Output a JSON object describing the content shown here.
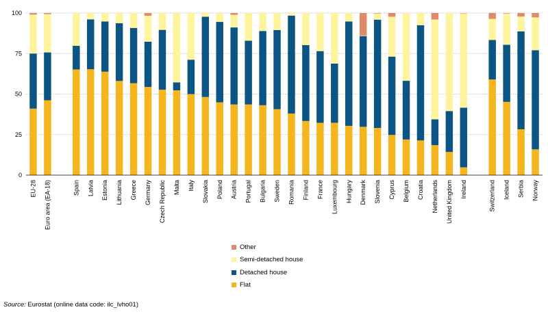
{
  "chart_data": {
    "type": "bar",
    "stacked": true,
    "categories": [
      "EU-28",
      "Euro area (EA-18)",
      "",
      "Spain",
      "Latvia",
      "Estonia",
      "Lithuania",
      "Greece",
      "Germany",
      "Czech Republic",
      "Malta",
      "Italy",
      "Slovakia",
      "Poland",
      "Austria",
      "Portugal",
      "Bulgaria",
      "Sweden",
      "Romania",
      "Finland",
      "France",
      "Luxembourg",
      "Hungary",
      "Denmark",
      "Slovenia",
      "Cyprus",
      "Belgium",
      "Croatia",
      "Netherlands",
      "United Kingdom",
      "Ireland",
      "",
      "Switzerland",
      "Iceland",
      "Serbia",
      "Norway"
    ],
    "series": [
      {
        "name": "Flat",
        "color": "#f4b51f",
        "values": [
          41.0,
          46.2,
          null,
          65.2,
          65.3,
          63.8,
          58.1,
          56.7,
          54.4,
          52.7,
          52.3,
          50.0,
          48.2,
          44.9,
          43.6,
          43.6,
          43.1,
          40.7,
          38.0,
          33.4,
          32.3,
          32.3,
          30.4,
          29.8,
          29.1,
          24.8,
          22.0,
          21.4,
          18.5,
          14.3,
          4.8,
          null,
          59.0,
          45.2,
          28.3,
          15.9
        ]
      },
      {
        "name": "Detached house",
        "color": "#0b5484",
        "values": [
          34.0,
          29.5,
          null,
          14.6,
          30.8,
          31.0,
          35.6,
          34.1,
          27.9,
          36.9,
          4.9,
          21.2,
          49.5,
          49.6,
          47.5,
          39.3,
          45.8,
          48.8,
          60.4,
          46.8,
          44.2,
          36.5,
          64.4,
          55.9,
          66.8,
          48.3,
          36.2,
          71.1,
          15.9,
          25.2,
          36.8,
          null,
          24.4,
          35.2,
          60.4,
          61.1
        ]
      },
      {
        "name": "Semi-detached house",
        "color": "#fff49e",
        "values": [
          24.0,
          23.6,
          null,
          20.2,
          3.9,
          5.2,
          6.3,
          9.2,
          16.0,
          10.4,
          42.8,
          28.8,
          2.3,
          5.5,
          7.8,
          17.1,
          11.1,
          10.5,
          1.6,
          19.8,
          23.5,
          31.2,
          5.2,
          0.2,
          3.8,
          24.6,
          41.8,
          7.5,
          61.6,
          60.5,
          58.2,
          null,
          13.0,
          19.3,
          9.1,
          20.3
        ]
      },
      {
        "name": "Other",
        "color": "#df8a69",
        "values": [
          1.0,
          0.7,
          null,
          0.0,
          0.0,
          0.0,
          0.0,
          0.0,
          1.7,
          0.0,
          0.0,
          0.0,
          0.0,
          0.0,
          1.1,
          0.0,
          0.0,
          0.0,
          0.0,
          0.0,
          0.0,
          0.0,
          0.0,
          14.1,
          0.3,
          2.3,
          0.0,
          0.0,
          4.0,
          0.0,
          0.2,
          null,
          3.6,
          0.3,
          2.2,
          2.7
        ]
      }
    ],
    "y_ticks": [
      "0",
      "25",
      "50",
      "75",
      "100"
    ],
    "ylim": [
      0,
      100
    ],
    "grid": true,
    "legend_placement": "bottom-center"
  },
  "legend": {
    "other": "Other",
    "semi": "Semi-detached house",
    "detached": "Detached house",
    "flat": "Flat"
  },
  "source": {
    "label": "Source:",
    "text": "Eurostat (online data code: ilc_lvho01)"
  }
}
